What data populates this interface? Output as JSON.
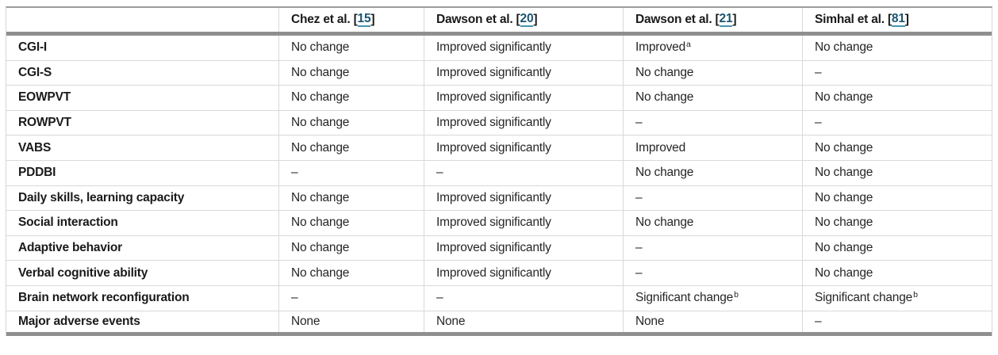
{
  "colors": {
    "citation_link": "#1b5570",
    "citation_underline": "#4595b1",
    "thick_rule": "#8f8f8f",
    "thin_rule": "#d9d9d9",
    "text": "#262626"
  },
  "table": {
    "headers": [
      {
        "pre": "Chez et al. [",
        "ref": "15",
        "post": "]"
      },
      {
        "pre": "Dawson et al. [",
        "ref": "20",
        "post": "]"
      },
      {
        "pre": "Dawson et al. [",
        "ref": "21",
        "post": "]"
      },
      {
        "pre": "Simhal et al. [",
        "ref": "81",
        "post": "]"
      }
    ],
    "rows": [
      {
        "label": "CGI-I",
        "cells": [
          "No change",
          "Improved significantly",
          "Improved",
          "No change"
        ],
        "sups": {
          "2": "a"
        }
      },
      {
        "label": "CGI-S",
        "cells": [
          "No change",
          "Improved significantly",
          "No change",
          "–"
        ]
      },
      {
        "label": "EOWPVT",
        "cells": [
          "No change",
          "Improved significantly",
          "No change",
          "No change"
        ]
      },
      {
        "label": "ROWPVT",
        "cells": [
          "No change",
          "Improved significantly",
          "–",
          "–"
        ]
      },
      {
        "label": "VABS",
        "cells": [
          "No change",
          "Improved significantly",
          "Improved",
          "No change"
        ]
      },
      {
        "label": "PDDBI",
        "cells": [
          "–",
          "–",
          "No change",
          "No change"
        ]
      },
      {
        "label": "Daily skills, learning capacity",
        "cells": [
          "No change",
          "Improved significantly",
          "–",
          "No change"
        ]
      },
      {
        "label": "Social interaction",
        "cells": [
          "No change",
          "Improved significantly",
          "No change",
          "No change"
        ]
      },
      {
        "label": "Adaptive behavior",
        "cells": [
          "No change",
          "Improved significantly",
          "–",
          "No change"
        ]
      },
      {
        "label": "Verbal cognitive ability",
        "cells": [
          "No change",
          "Improved significantly",
          "–",
          "No change"
        ]
      },
      {
        "label": "Brain network reconfiguration",
        "cells": [
          "–",
          "–",
          "Significant change",
          "Significant change"
        ],
        "sups": {
          "2": "b",
          "3": "b"
        }
      },
      {
        "label": "Major adverse events",
        "cells": [
          "None",
          "None",
          "None",
          "–"
        ]
      }
    ]
  }
}
